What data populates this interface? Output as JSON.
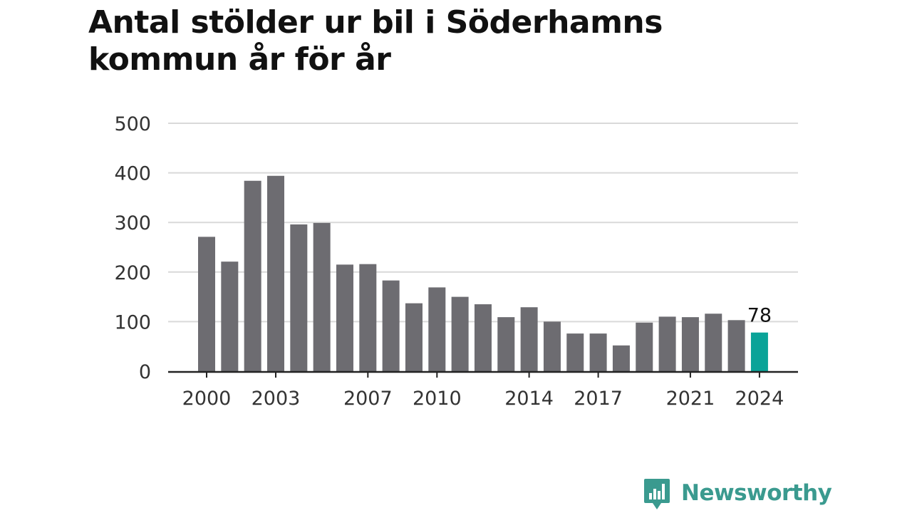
{
  "title": "Antal stölder ur bil i Söderhamns kommun år för år",
  "brand": {
    "name": "Newsworthy",
    "icon": "chart-speech-bubble-icon"
  },
  "colors": {
    "bar": "#6d6c71",
    "highlight": "#0aa398",
    "grid": "#d9d9d9",
    "axis": "#222222",
    "text": "#333333",
    "brand": "#3a9a8f"
  },
  "chart_data": {
    "type": "bar",
    "categories": [
      "2000",
      "2001",
      "2002",
      "2003",
      "2004",
      "2005",
      "2006",
      "2007",
      "2008",
      "2009",
      "2010",
      "2011",
      "2012",
      "2013",
      "2014",
      "2015",
      "2016",
      "2017",
      "2018",
      "2019",
      "2020",
      "2021",
      "2022",
      "2023",
      "2024"
    ],
    "values": [
      271,
      221,
      384,
      394,
      296,
      299,
      215,
      216,
      183,
      137,
      169,
      150,
      135,
      109,
      129,
      100,
      76,
      76,
      52,
      98,
      110,
      109,
      116,
      103,
      78
    ],
    "highlight_index": 24,
    "data_labels": {
      "2024": "78"
    },
    "xticks": [
      "2000",
      "2003",
      "2007",
      "2010",
      "2014",
      "2017",
      "2021",
      "2024"
    ],
    "yticks": [
      0,
      100,
      200,
      300,
      400,
      500
    ],
    "ylim": [
      0,
      500
    ],
    "grid": true,
    "title": "Antal stölder ur bil i Söderhamns kommun år för år",
    "xlabel": "",
    "ylabel": ""
  }
}
